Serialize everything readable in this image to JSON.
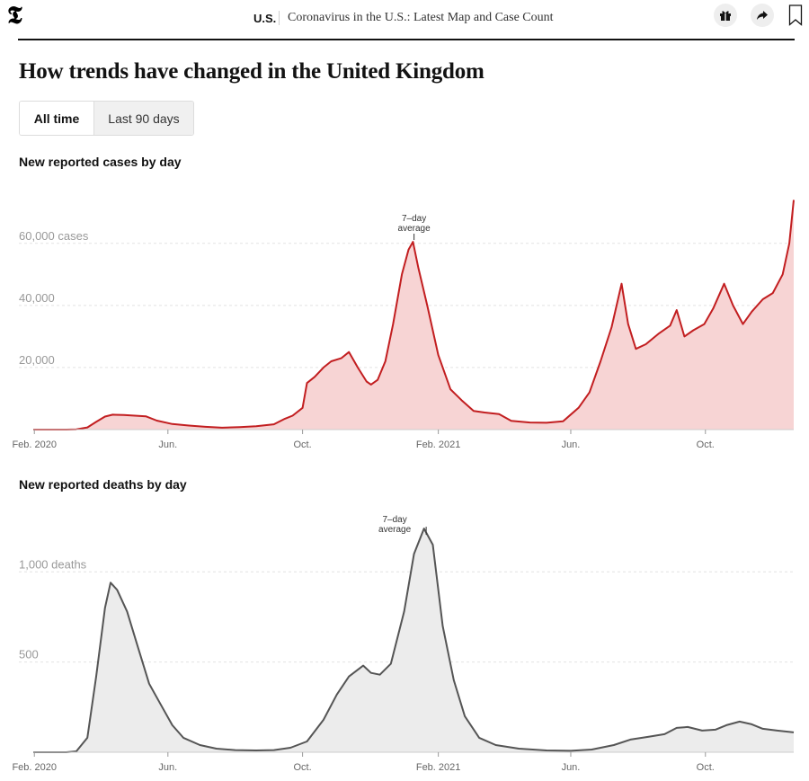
{
  "header": {
    "logo_glyph": "𝕿",
    "section": "U.S.",
    "headline": "Coronavirus in the U.S.: Latest Map and Case Count"
  },
  "page": {
    "title": "How trends have changed in the United Kingdom",
    "toggle": {
      "options": [
        "All time",
        "Last 90 days"
      ],
      "selected": "All time"
    }
  },
  "icons": {
    "gift": "gift-icon",
    "share": "share-arrow-icon",
    "bookmark": "bookmark-icon"
  },
  "colors": {
    "cases_line": "#c21e20",
    "cases_fill": "#f7d4d4",
    "deaths_line": "#555555",
    "deaths_fill": "#ececec"
  },
  "chart_data": [
    {
      "type": "area",
      "title": "New reported cases by day",
      "x_ticks": [
        "Feb. 2020",
        "Jun.",
        "Oct.",
        "Feb. 2021",
        "Jun.",
        "Oct."
      ],
      "y_ticks": [
        {
          "value": 20000,
          "label": "20,000"
        },
        {
          "value": 40000,
          "label": "40,000"
        },
        {
          "value": 60000,
          "label": "60,000 cases"
        }
      ],
      "ylim": [
        0,
        75000
      ],
      "xlim": [
        "2020-01-31",
        "2021-12-20"
      ],
      "annotation": {
        "lines": [
          "7–day",
          "average"
        ],
        "date": "2021-01-10"
      },
      "series": [
        {
          "values": [
            [
              "2020-01-31",
              0
            ],
            [
              "2020-02-15",
              0
            ],
            [
              "2020-03-01",
              10
            ],
            [
              "2020-03-10",
              100
            ],
            [
              "2020-03-20",
              700
            ],
            [
              "2020-03-28",
              2500
            ],
            [
              "2020-04-05",
              4200
            ],
            [
              "2020-04-12",
              4800
            ],
            [
              "2020-04-22",
              4700
            ],
            [
              "2020-05-02",
              4500
            ],
            [
              "2020-05-12",
              4300
            ],
            [
              "2020-05-22",
              2900
            ],
            [
              "2020-06-05",
              1800
            ],
            [
              "2020-06-20",
              1300
            ],
            [
              "2020-07-05",
              900
            ],
            [
              "2020-07-20",
              600
            ],
            [
              "2020-08-05",
              800
            ],
            [
              "2020-08-20",
              1100
            ],
            [
              "2020-09-05",
              1700
            ],
            [
              "2020-09-15",
              3500
            ],
            [
              "2020-09-22",
              4500
            ],
            [
              "2020-10-01",
              7000
            ],
            [
              "2020-10-05",
              15000
            ],
            [
              "2020-10-12",
              17000
            ],
            [
              "2020-10-20",
              20000
            ],
            [
              "2020-10-27",
              22000
            ],
            [
              "2020-11-05",
              23000
            ],
            [
              "2020-11-12",
              25000
            ],
            [
              "2020-11-20",
              20000
            ],
            [
              "2020-11-28",
              15500
            ],
            [
              "2020-12-02",
              14500
            ],
            [
              "2020-12-08",
              16000
            ],
            [
              "2020-12-15",
              22000
            ],
            [
              "2020-12-22",
              34000
            ],
            [
              "2020-12-30",
              50000
            ],
            [
              "2021-01-05",
              58000
            ],
            [
              "2021-01-09",
              60500
            ],
            [
              "2021-01-14",
              52000
            ],
            [
              "2021-01-22",
              40000
            ],
            [
              "2021-02-01",
              24000
            ],
            [
              "2021-02-12",
              13000
            ],
            [
              "2021-02-22",
              9500
            ],
            [
              "2021-03-05",
              6000
            ],
            [
              "2021-03-15",
              5500
            ],
            [
              "2021-03-28",
              5000
            ],
            [
              "2021-04-08",
              2800
            ],
            [
              "2021-04-25",
              2300
            ],
            [
              "2021-05-10",
              2200
            ],
            [
              "2021-05-25",
              2700
            ],
            [
              "2021-06-08",
              7000
            ],
            [
              "2021-06-18",
              12000
            ],
            [
              "2021-06-28",
              22000
            ],
            [
              "2021-07-08",
              33000
            ],
            [
              "2021-07-17",
              47000
            ],
            [
              "2021-07-23",
              34000
            ],
            [
              "2021-07-30",
              26000
            ],
            [
              "2021-08-08",
              27500
            ],
            [
              "2021-08-20",
              31000
            ],
            [
              "2021-08-30",
              33500
            ],
            [
              "2021-09-05",
              38500
            ],
            [
              "2021-09-12",
              30000
            ],
            [
              "2021-09-20",
              32000
            ],
            [
              "2021-09-30",
              34000
            ],
            [
              "2021-10-08",
              39000
            ],
            [
              "2021-10-18",
              47000
            ],
            [
              "2021-10-26",
              40000
            ],
            [
              "2021-11-04",
              34000
            ],
            [
              "2021-11-12",
              38000
            ],
            [
              "2021-11-22",
              42000
            ],
            [
              "2021-12-01",
              44000
            ],
            [
              "2021-12-10",
              50000
            ],
            [
              "2021-12-16",
              60000
            ],
            [
              "2021-12-20",
              74000
            ]
          ]
        }
      ]
    },
    {
      "type": "area",
      "title": "New reported deaths by day",
      "x_ticks": [
        "Feb. 2020",
        "Jun.",
        "Oct.",
        "Feb. 2021",
        "Jun.",
        "Oct."
      ],
      "y_ticks": [
        {
          "value": 500,
          "label": "500"
        },
        {
          "value": 1000,
          "label": "1,000 deaths"
        }
      ],
      "ylim": [
        0,
        1350
      ],
      "xlim": [
        "2020-01-31",
        "2021-12-20"
      ],
      "annotation": {
        "lines": [
          "7–day",
          "average"
        ],
        "date": "2021-01-21"
      },
      "series": [
        {
          "values": [
            [
              "2020-01-31",
              0
            ],
            [
              "2020-03-01",
              0
            ],
            [
              "2020-03-10",
              5
            ],
            [
              "2020-03-20",
              80
            ],
            [
              "2020-03-28",
              420
            ],
            [
              "2020-04-05",
              800
            ],
            [
              "2020-04-10",
              940
            ],
            [
              "2020-04-16",
              900
            ],
            [
              "2020-04-25",
              780
            ],
            [
              "2020-05-05",
              580
            ],
            [
              "2020-05-15",
              380
            ],
            [
              "2020-05-25",
              270
            ],
            [
              "2020-06-05",
              150
            ],
            [
              "2020-06-15",
              80
            ],
            [
              "2020-06-30",
              40
            ],
            [
              "2020-07-15",
              20
            ],
            [
              "2020-08-01",
              12
            ],
            [
              "2020-08-20",
              10
            ],
            [
              "2020-09-05",
              12
            ],
            [
              "2020-09-20",
              25
            ],
            [
              "2020-10-05",
              60
            ],
            [
              "2020-10-20",
              180
            ],
            [
              "2020-11-01",
              320
            ],
            [
              "2020-11-12",
              420
            ],
            [
              "2020-11-25",
              480
            ],
            [
              "2020-12-02",
              440
            ],
            [
              "2020-12-10",
              430
            ],
            [
              "2020-12-20",
              490
            ],
            [
              "2021-01-01",
              780
            ],
            [
              "2021-01-10",
              1100
            ],
            [
              "2021-01-19",
              1240
            ],
            [
              "2021-01-27",
              1150
            ],
            [
              "2021-02-05",
              700
            ],
            [
              "2021-02-15",
              400
            ],
            [
              "2021-02-25",
              200
            ],
            [
              "2021-03-10",
              80
            ],
            [
              "2021-03-25",
              40
            ],
            [
              "2021-04-15",
              20
            ],
            [
              "2021-05-10",
              10
            ],
            [
              "2021-06-01",
              8
            ],
            [
              "2021-06-20",
              15
            ],
            [
              "2021-07-10",
              40
            ],
            [
              "2021-07-25",
              70
            ],
            [
              "2021-08-10",
              85
            ],
            [
              "2021-08-25",
              100
            ],
            [
              "2021-09-05",
              135
            ],
            [
              "2021-09-15",
              140
            ],
            [
              "2021-09-28",
              120
            ],
            [
              "2021-10-10",
              125
            ],
            [
              "2021-10-20",
              150
            ],
            [
              "2021-11-01",
              170
            ],
            [
              "2021-11-12",
              155
            ],
            [
              "2021-11-22",
              130
            ],
            [
              "2021-12-05",
              120
            ],
            [
              "2021-12-20",
              110
            ]
          ]
        }
      ]
    }
  ]
}
